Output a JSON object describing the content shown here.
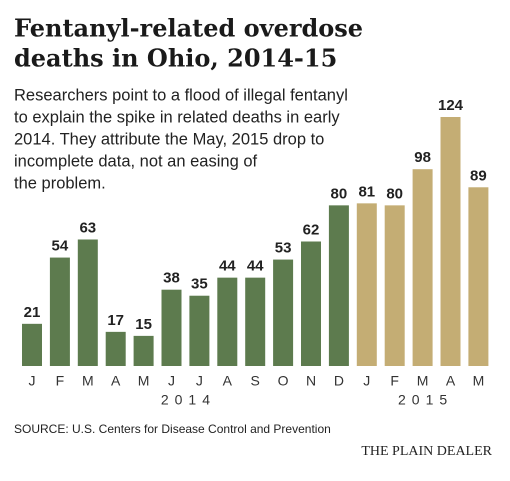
{
  "chart_data": {
    "type": "bar",
    "title": [
      "Fentanyl-related overdose",
      "deaths in Ohio, 2014-15"
    ],
    "subtitle": [
      "Researchers point to a flood of illegal fentanyl",
      "to explain the spike in related deaths in early",
      "2014. They attribute the May, 2015 drop to",
      "incomplete data, not an easing of",
      "the problem."
    ],
    "groups": [
      {
        "name": "2014",
        "color": "#5d7b4e",
        "categories": [
          "J",
          "F",
          "M",
          "A",
          "M",
          "J",
          "J",
          "A",
          "S",
          "O",
          "N",
          "D"
        ],
        "values": [
          21,
          54,
          63,
          17,
          15,
          38,
          35,
          44,
          44,
          53,
          62,
          80
        ]
      },
      {
        "name": "2015",
        "color": "#c4ad74",
        "categories": [
          "J",
          "F",
          "M",
          "A",
          "M"
        ],
        "values": [
          81,
          80,
          98,
          124,
          89
        ]
      }
    ],
    "source": "SOURCE: U.S. Centers for Disease Control and Prevention",
    "credit": "THE PLAIN DEALER"
  }
}
